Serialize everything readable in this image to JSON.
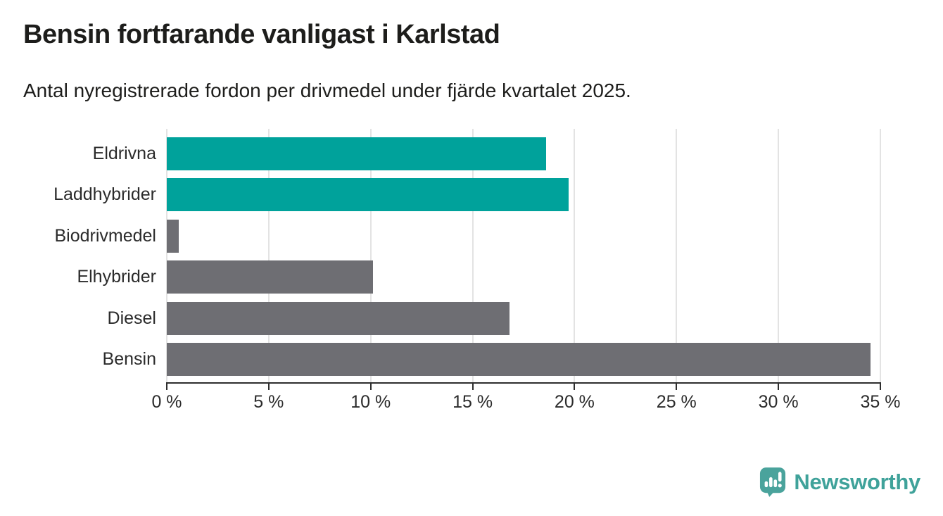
{
  "header": {
    "title": "Bensin fortfarande vanligast i Karlstad",
    "subtitle": "Antal nyregistrerade fordon per drivmedel under fjärde kvartalet 2025."
  },
  "chart_data": {
    "type": "bar",
    "orientation": "horizontal",
    "title": "Bensin fortfarande vanligast i Karlstad",
    "subtitle": "Antal nyregistrerade fordon per drivmedel under fjärde kvartalet 2025.",
    "categories": [
      "Eldrivna",
      "Laddhybrider",
      "Biodrivmedel",
      "Elhybrider",
      "Diesel",
      "Bensin"
    ],
    "values": [
      18.6,
      19.7,
      0.6,
      10.1,
      16.8,
      34.5
    ],
    "unit": "%",
    "bar_colors": [
      "#00a29b",
      "#00a29b",
      "#6e6e73",
      "#6e6e73",
      "#6e6e73",
      "#6e6e73"
    ],
    "accent_color": "#00a29b",
    "neutral_color": "#6e6e73",
    "gridline_color": "#e3e3e3",
    "axis_color": "#2e2e2e",
    "x_axis": {
      "min": 0,
      "max": 35,
      "tick_values": [
        0,
        5,
        10,
        15,
        20,
        25,
        30,
        35
      ],
      "tick_labels": [
        "0 %",
        "5 %",
        "10 %",
        "15 %",
        "20 %",
        "25 %",
        "30 %",
        "35 %"
      ]
    },
    "grid": "vertical",
    "legend": "none"
  },
  "footer": {
    "logo_text": "Newsworthy",
    "logo_color": "#3fa29a",
    "logo_icon_color": "#4aa39c"
  }
}
